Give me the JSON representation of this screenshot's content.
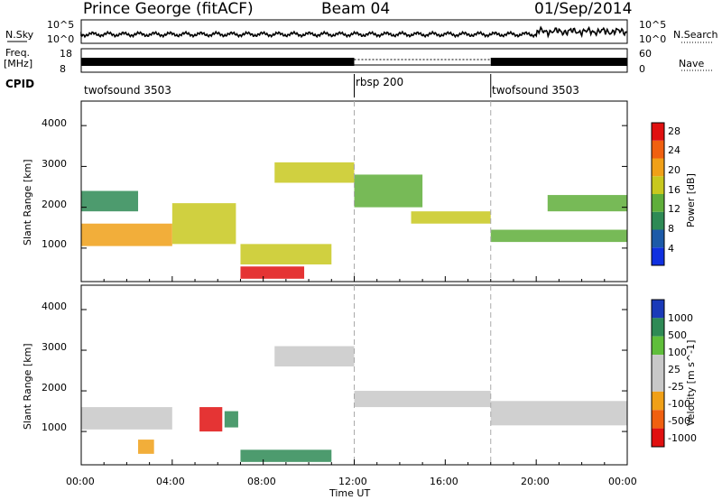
{
  "header": {
    "station": "Prince George (fitACF)",
    "beam": "Beam 04",
    "date": "01/Sep/2014"
  },
  "top_panels": {
    "nsky_label": "N.Sky",
    "nsky_ticks": [
      "10^5",
      "10^0"
    ],
    "nsearch_label": "N.Search",
    "nsearch_ticks": [
      "10^5",
      "10^0"
    ],
    "freq_label": "Freq.",
    "freq_unit": "[MHz]",
    "freq_ticks": [
      "18",
      "8"
    ],
    "nave_label": "Nave",
    "nave_ticks": [
      "60",
      "0"
    ],
    "cpid_label": "CPID",
    "cpid_segments": [
      {
        "label": "twofsound 3503",
        "start_hour": 0,
        "end_hour": 12
      },
      {
        "label": "rbsp 200",
        "start_hour": 12,
        "end_hour": 18
      },
      {
        "label": "twofsound 3503",
        "start_hour": 18,
        "end_hour": 24
      }
    ]
  },
  "x_axis": {
    "label": "Time UT",
    "ticks": [
      "00:00",
      "04:00",
      "08:00",
      "12:00",
      "16:00",
      "20:00",
      "00:00"
    ]
  },
  "chart_data": [
    {
      "type": "heatmap",
      "title": "",
      "xlabel": "Time UT",
      "ylabel": "Slant Range [km]",
      "xlim": [
        0,
        24
      ],
      "ylim": [
        180,
        4600
      ],
      "yticks": [
        "1000",
        "2000",
        "3000",
        "4000"
      ],
      "colorbar": {
        "label": "Power [dB]",
        "ticks": [
          "4",
          "8",
          "12",
          "16",
          "20",
          "24",
          "28"
        ],
        "range": [
          0,
          30
        ],
        "colors": [
          "#1030e0",
          "#1c5aa8",
          "#2e8a55",
          "#5fae3a",
          "#c8c81e",
          "#f0a018",
          "#f06010",
          "#e01010"
        ]
      },
      "bands": [
        {
          "t0": 0.0,
          "t1": 4.0,
          "r0": 1050,
          "r1": 1600,
          "dB": 22
        },
        {
          "t0": 0.0,
          "t1": 2.5,
          "r0": 1900,
          "r1": 2400,
          "dB": 10
        },
        {
          "t0": 4.0,
          "t1": 6.8,
          "r0": 1100,
          "r1": 2100,
          "dB": 16
        },
        {
          "t0": 7.0,
          "t1": 9.8,
          "r0": 250,
          "r1": 550,
          "dB": 28
        },
        {
          "t0": 7.0,
          "t1": 11.0,
          "r0": 600,
          "r1": 1100,
          "dB": 18
        },
        {
          "t0": 8.5,
          "t1": 12.0,
          "r0": 2600,
          "r1": 3100,
          "dB": 15
        },
        {
          "t0": 12.0,
          "t1": 15.0,
          "r0": 2000,
          "r1": 2800,
          "dB": 12
        },
        {
          "t0": 14.5,
          "t1": 18.0,
          "r0": 1600,
          "r1": 1900,
          "dB": 18
        },
        {
          "t0": 18.0,
          "t1": 24.0,
          "r0": 1150,
          "r1": 1450,
          "dB": 14
        },
        {
          "t0": 20.5,
          "t1": 24.0,
          "r0": 1900,
          "r1": 2300,
          "dB": 12
        }
      ]
    },
    {
      "type": "heatmap",
      "title": "",
      "xlabel": "Time UT",
      "ylabel": "Slant Range [km]",
      "xlim": [
        0,
        24
      ],
      "ylim": [
        180,
        4600
      ],
      "yticks": [
        "1000",
        "2000",
        "3000",
        "4000"
      ],
      "colorbar": {
        "label": "Velocity [m s^-1]",
        "ticks": [
          "1000",
          "500",
          "100",
          "25",
          "-25",
          "-100",
          "-500",
          "-1000"
        ],
        "colors": [
          "#1a3ab8",
          "#2e8a55",
          "#5fbe3a",
          "#c8c8c8",
          "#c8c8c8",
          "#f0a018",
          "#f06010",
          "#e01010"
        ]
      },
      "bands": [
        {
          "t0": 0.0,
          "t1": 4.0,
          "r0": 1050,
          "r1": 1600,
          "v": 0
        },
        {
          "t0": 5.2,
          "t1": 6.2,
          "r0": 1000,
          "r1": 1600,
          "v": -600
        },
        {
          "t0": 6.3,
          "t1": 6.9,
          "r0": 1100,
          "r1": 1500,
          "v": 300
        },
        {
          "t0": 7.0,
          "t1": 11.0,
          "r0": 250,
          "r1": 550,
          "v": 120
        },
        {
          "t0": 8.5,
          "t1": 12.0,
          "r0": 2600,
          "r1": 3100,
          "v": 0
        },
        {
          "t0": 12.0,
          "t1": 18.0,
          "r0": 1600,
          "r1": 2000,
          "v": 0
        },
        {
          "t0": 18.0,
          "t1": 24.0,
          "r0": 1150,
          "r1": 1750,
          "v": 0
        },
        {
          "t0": 2.5,
          "t1": 3.2,
          "r0": 450,
          "r1": 800,
          "v": -150
        }
      ]
    }
  ]
}
